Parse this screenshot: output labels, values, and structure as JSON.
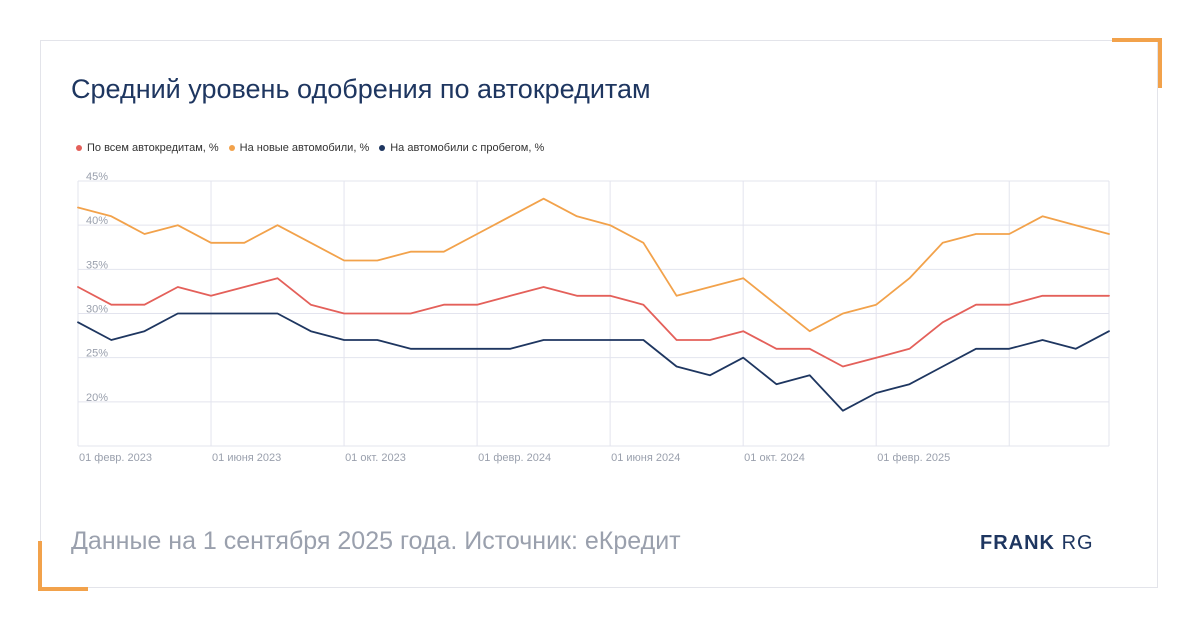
{
  "title": "Средний уровень одобрения по автокредитам",
  "footer": {
    "note": "Данные на 1 сентября 2025 года. Источник: еКредит",
    "logo_strong": "FRANK",
    "logo_light": "RG"
  },
  "colors": {
    "all": "#e4605a",
    "new": "#f2a24b",
    "used": "#1e3660",
    "accent": "#f2a24b",
    "grid": "#e3e4ee"
  },
  "chart_data": {
    "type": "line",
    "title": "Средний уровень одобрения по автокредитам",
    "xlabel": "",
    "ylabel": "",
    "ylim": [
      15,
      45
    ],
    "y_ticks": [
      "45%",
      "40%",
      "35%",
      "30%",
      "25%",
      "20%"
    ],
    "y_tick_values": [
      45,
      40,
      35,
      30,
      25,
      20
    ],
    "x_tick_labels": [
      "01 февр. 2023",
      "01 июня 2023",
      "01 окт. 2023",
      "01 февр. 2024",
      "01 июня 2024",
      "01 окт. 2024",
      "01 февр. 2025"
    ],
    "x_tick_indices": [
      0,
      4,
      8,
      12,
      16,
      20,
      24
    ],
    "legend_position": "top-left",
    "grid": true,
    "series": [
      {
        "name": "По всем автокредитам, %",
        "color": "#e4605a",
        "values": [
          33,
          31,
          31,
          33,
          32,
          33,
          34,
          31,
          30,
          30,
          30,
          31,
          31,
          32,
          33,
          32,
          32,
          31,
          27,
          27,
          28,
          26,
          26,
          24,
          25,
          26,
          29,
          31,
          31,
          32,
          32,
          32
        ]
      },
      {
        "name": "На новые автомобили, %",
        "color": "#f2a24b",
        "values": [
          42,
          41,
          39,
          40,
          38,
          38,
          40,
          38,
          36,
          36,
          37,
          37,
          39,
          41,
          43,
          41,
          40,
          38,
          32,
          33,
          34,
          31,
          28,
          30,
          31,
          34,
          38,
          39,
          39,
          41,
          40,
          39
        ]
      },
      {
        "name": "На автомобили с пробегом, %",
        "color": "#1e3660",
        "values": [
          29,
          27,
          28,
          30,
          30,
          30,
          30,
          28,
          27,
          27,
          26,
          26,
          26,
          26,
          27,
          27,
          27,
          27,
          24,
          23,
          25,
          22,
          23,
          19,
          21,
          22,
          24,
          26,
          26,
          27,
          26,
          28
        ]
      }
    ]
  }
}
